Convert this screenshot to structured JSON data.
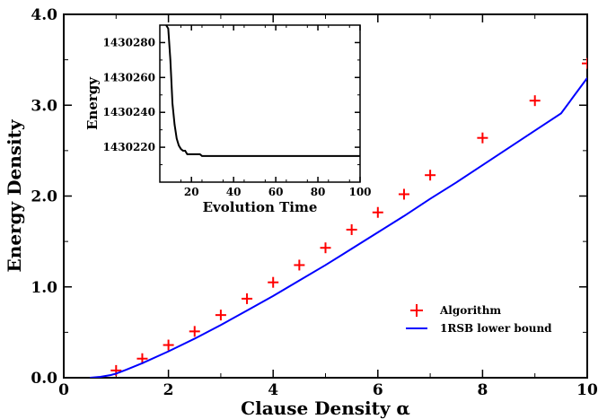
{
  "chart_data": [
    {
      "type": "scatter",
      "role": "main",
      "xlabel": "Clause Density α",
      "ylabel": "Energy Density",
      "xlim": [
        0,
        10
      ],
      "ylim": [
        0,
        4.0
      ],
      "xticks": [
        0,
        2,
        4,
        6,
        8,
        10
      ],
      "xtick_labels": [
        "0",
        "2",
        "4",
        "6",
        "8",
        "10"
      ],
      "yticks": [
        0,
        1,
        2,
        3,
        4
      ],
      "ytick_labels": [
        "0.0",
        "1.0",
        "2.0",
        "3.0",
        "4.0"
      ],
      "grid": false,
      "legend_position": "bottom-right",
      "series": [
        {
          "name": "Algorithm",
          "kind": "marker",
          "marker": "plus",
          "color": "#ff0000",
          "x": [
            1,
            1.5,
            2,
            2.5,
            3,
            3.5,
            4,
            4.5,
            5,
            5.5,
            6,
            6.5,
            7,
            8,
            9,
            10
          ],
          "y": [
            0.08,
            0.21,
            0.36,
            0.51,
            0.69,
            0.87,
            1.05,
            1.24,
            1.43,
            1.63,
            1.82,
            2.02,
            2.23,
            2.64,
            3.05,
            3.46
          ]
        },
        {
          "name": "1RSB lower bound",
          "kind": "line",
          "color": "#0000ff",
          "x": [
            0.5,
            0.7,
            0.9,
            1.0,
            1.2,
            1.5,
            2.0,
            2.5,
            3.0,
            3.5,
            4.0,
            4.5,
            5.0,
            5.5,
            6.0,
            6.5,
            7.0,
            7.5,
            8.0,
            8.5,
            9.0,
            9.5,
            10.0
          ],
          "y": [
            0.0,
            0.01,
            0.03,
            0.045,
            0.09,
            0.16,
            0.29,
            0.43,
            0.58,
            0.74,
            0.9,
            1.07,
            1.24,
            1.42,
            1.6,
            1.78,
            1.97,
            2.15,
            2.34,
            2.53,
            2.72,
            2.91,
            3.3
          ]
        }
      ]
    },
    {
      "type": "line",
      "role": "inset",
      "xlabel": "Evolution Time",
      "ylabel": "Energy",
      "xlim": [
        5,
        100
      ],
      "ylim": [
        1430200,
        1430290
      ],
      "xticks": [
        20,
        40,
        60,
        80,
        100
      ],
      "xtick_labels": [
        "20",
        "40",
        "60",
        "80",
        "100"
      ],
      "yticks": [
        1430220,
        1430240,
        1430260,
        1430280
      ],
      "ytick_labels": [
        "1430220",
        "1430240",
        "1430260",
        "1430280"
      ],
      "grid": false,
      "series": [
        {
          "kind": "line",
          "color": "#000000",
          "x": [
            5,
            7,
            8,
            9,
            10,
            11,
            12,
            13,
            14,
            15,
            16,
            17,
            18,
            20,
            22,
            24,
            25,
            30,
            40,
            60,
            80,
            100
          ],
          "y": [
            1430300,
            1430295,
            1430290,
            1430288,
            1430270,
            1430245,
            1430233,
            1430225,
            1430221,
            1430219,
            1430218,
            1430218,
            1430216,
            1430216,
            1430216,
            1430216,
            1430215,
            1430215,
            1430215,
            1430215,
            1430215,
            1430215
          ]
        }
      ]
    }
  ]
}
